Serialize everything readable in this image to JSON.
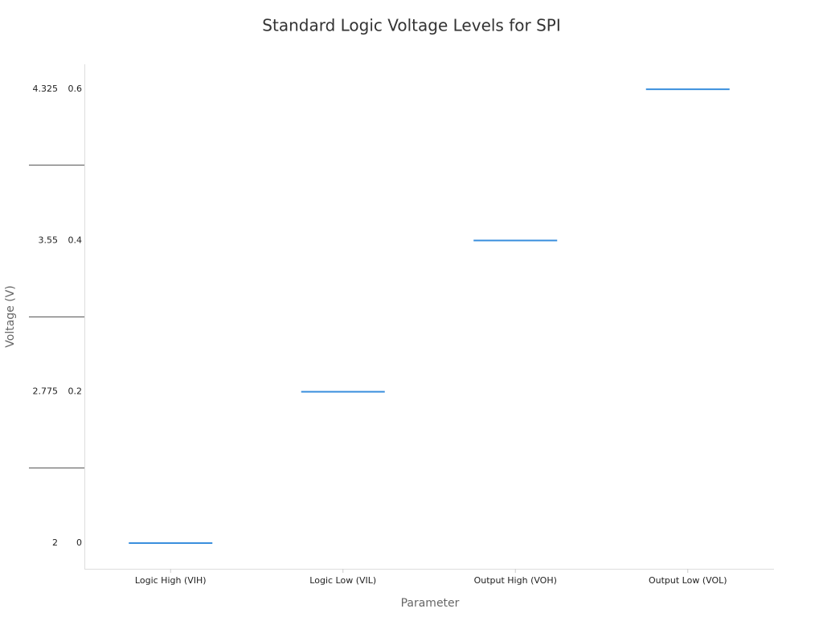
{
  "chart_data": {
    "type": "level",
    "title": "Standard Logic Voltage Levels for SPI",
    "x_label": "Parameter",
    "y_label": "Voltage (V)",
    "categories": [
      "Logic High (VIH)",
      "Logic Low (VIL)",
      "Output High (VOH)",
      "Output Low (VOL)"
    ],
    "values": [
      0,
      0.2,
      0.4,
      0.6
    ],
    "color": "#3a8fdd",
    "ylim": [
      -0.034,
      0.633
    ],
    "yticks": [
      0,
      0.2,
      0.4,
      0.6
    ],
    "y2lim": [
      1.868,
      4.453
    ],
    "y2ticks": [
      2,
      2.775,
      3.55,
      4.325
    ]
  }
}
